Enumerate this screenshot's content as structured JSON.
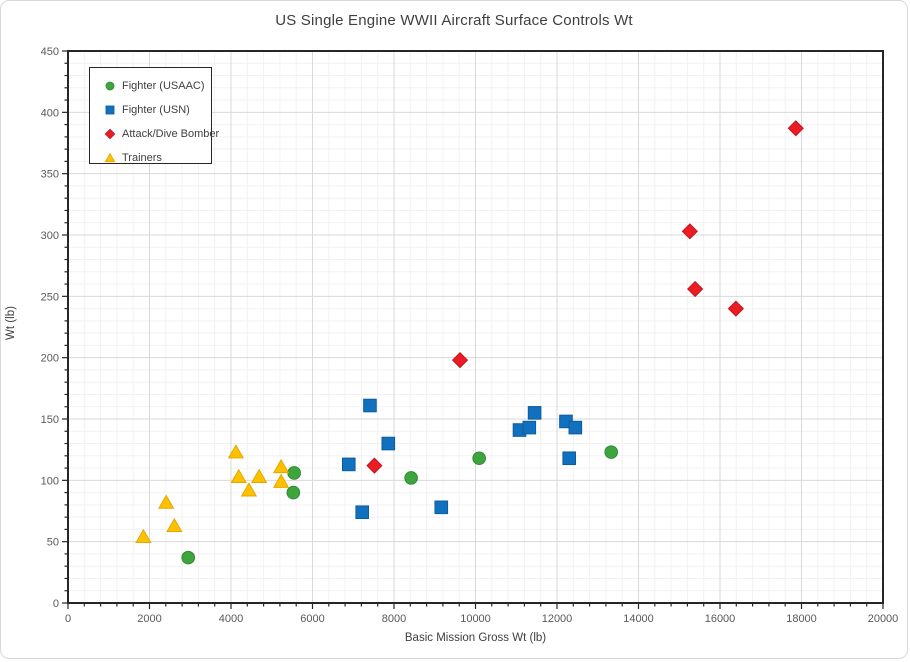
{
  "frame": {
    "background": "#FFFFFF",
    "border_color": "#D8D8D8"
  },
  "chart_data": {
    "type": "scatter",
    "title": "US Single Engine WWII Aircraft Surface Controls Wt",
    "xlabel": "Basic Mission Gross Wt (lb)",
    "ylabel": "Wt (lb)",
    "xlim": [
      0,
      20000
    ],
    "ylim": [
      0,
      450
    ],
    "x_major_step": 2000,
    "x_minor_step": 400,
    "y_major_step": 50,
    "y_minor_step": 10,
    "grid": {
      "major_color": "#D9D9D9",
      "minor_color": "#F2F2F2",
      "minor_on": true
    },
    "axis_color": "#262626",
    "tick_label_color": "#595959",
    "title_color": "#3F3F3F",
    "legend": {
      "position": "top-left-inside",
      "border_color": "#262626",
      "text_color": "#404040"
    },
    "series": [
      {
        "name": "Fighter (USAAC)",
        "marker": "circle",
        "color": "#3EA53E",
        "edge": "#2F8A2F",
        "points": [
          [
            2950,
            37
          ],
          [
            5550,
            106
          ],
          [
            5530,
            90
          ],
          [
            8420,
            102
          ],
          [
            10090,
            118
          ],
          [
            13330,
            123
          ]
        ]
      },
      {
        "name": "Fighter (USN)",
        "marker": "square",
        "color": "#1171BE",
        "edge": "#0D5CA0",
        "points": [
          [
            6890,
            113
          ],
          [
            7220,
            74
          ],
          [
            7410,
            161
          ],
          [
            7860,
            130
          ],
          [
            9160,
            78
          ],
          [
            11080,
            141
          ],
          [
            11320,
            143
          ],
          [
            11450,
            155
          ],
          [
            12220,
            148
          ],
          [
            12300,
            118
          ],
          [
            12450,
            143
          ]
        ]
      },
      {
        "name": "Attack/Dive Bomber",
        "marker": "diamond",
        "color": "#EC1C24",
        "edge": "#C2151C",
        "points": [
          [
            7520,
            112
          ],
          [
            9620,
            198
          ],
          [
            15260,
            303
          ],
          [
            15390,
            256
          ],
          [
            16390,
            240
          ],
          [
            17860,
            387
          ]
        ]
      },
      {
        "name": "Trainers",
        "marker": "triangle",
        "color": "#FFC000",
        "edge": "#E2A800",
        "points": [
          [
            1850,
            54
          ],
          [
            2410,
            82
          ],
          [
            2610,
            63
          ],
          [
            4120,
            123
          ],
          [
            4190,
            103
          ],
          [
            4440,
            92
          ],
          [
            4690,
            103
          ],
          [
            5230,
            111
          ],
          [
            5230,
            99
          ]
        ]
      }
    ]
  }
}
